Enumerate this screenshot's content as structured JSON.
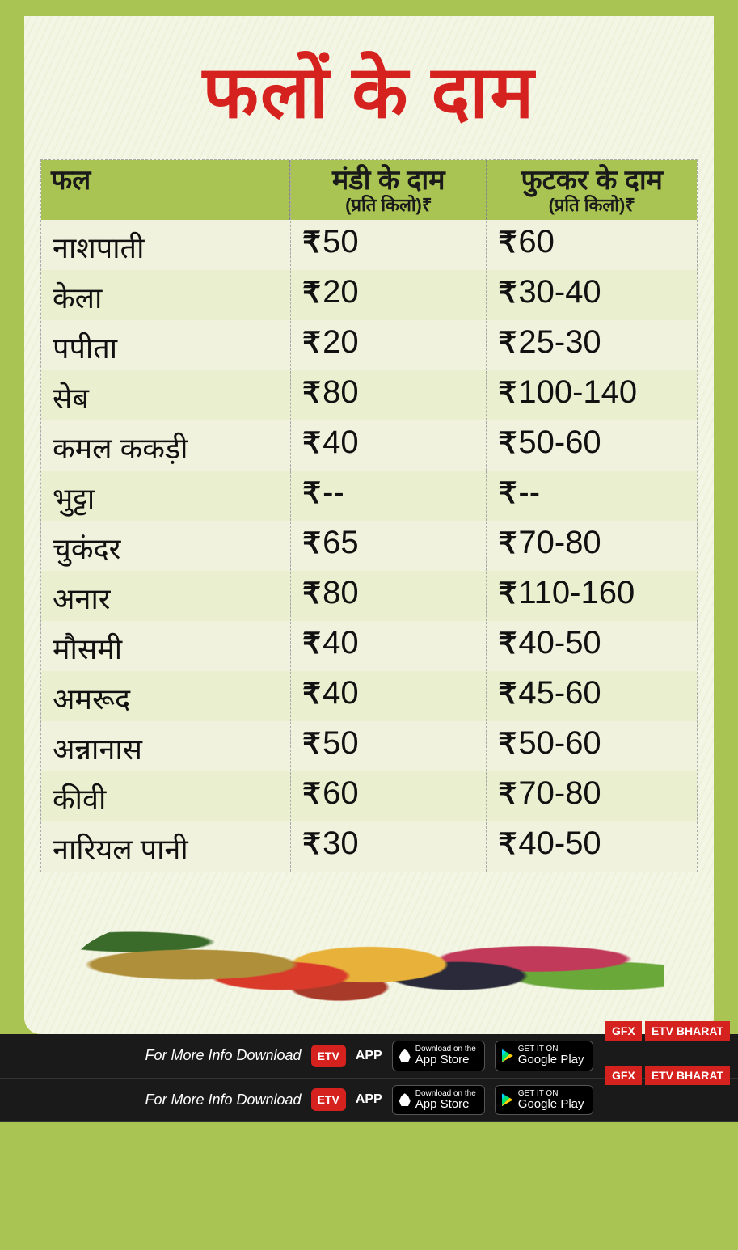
{
  "title": "फलों के दाम",
  "colors": {
    "outer_bg": "#a9c453",
    "card_bg": "#f4f6e5",
    "title_color": "#d6221f",
    "header_bg": "#a9c453",
    "row_light": "#f7f9eb",
    "row_alt": "#eaf0cf",
    "text": "#111111",
    "footer_bg": "#1a1a1a",
    "badge_red": "#d6221f"
  },
  "table": {
    "columns": [
      {
        "main": "फल",
        "sub": ""
      },
      {
        "main": "मंडी के दाम",
        "sub": "(प्रति किलो)₹"
      },
      {
        "main": "फुटकर के दाम",
        "sub": "(प्रति किलो)₹"
      }
    ],
    "currency_symbol": "₹",
    "rows": [
      {
        "name": "नाशपाती",
        "mandi": "50",
        "retail": "60"
      },
      {
        "name": "केला",
        "mandi": "20",
        "retail": "30-40"
      },
      {
        "name": "पपीता",
        "mandi": "20",
        "retail": "25-30"
      },
      {
        "name": "सेब",
        "mandi": "80",
        "retail": "100-140"
      },
      {
        "name": "कमल ककड़ी",
        "mandi": "40",
        "retail": "50-60"
      },
      {
        "name": "भुट्टा",
        "mandi": "--",
        "retail": "--"
      },
      {
        "name": "चुकंदर",
        "mandi": "65",
        "retail": "70-80"
      },
      {
        "name": "अनार",
        "mandi": "80",
        "retail": "110-160"
      },
      {
        "name": "मौसमी",
        "mandi": "40",
        "retail": "40-50"
      },
      {
        "name": "अमरूद",
        "mandi": "40",
        "retail": "45-60"
      },
      {
        "name": "अन्नानास",
        "mandi": "50",
        "retail": "50-60"
      },
      {
        "name": "कीवी",
        "mandi": "60",
        "retail": "70-80"
      },
      {
        "name": "नारियल पानी",
        "mandi": "30",
        "retail": "40-50"
      }
    ]
  },
  "footer": {
    "text": "For More Info Download",
    "app_label": "APP",
    "logo_label": "ETV",
    "store1": {
      "small": "Download on the",
      "big": "App Store"
    },
    "store2": {
      "small": "GET IT ON",
      "big": "Google Play"
    },
    "gfx": "GFX",
    "brand": "ETV BHARAT"
  }
}
